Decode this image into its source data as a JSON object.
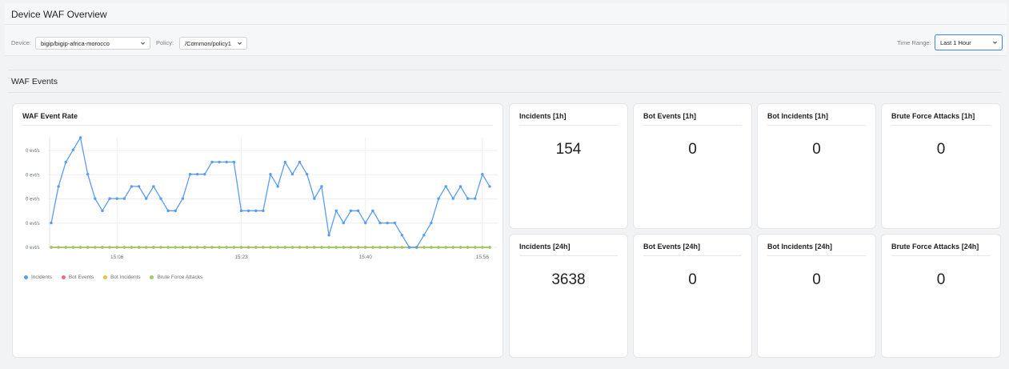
{
  "header": {
    "title": "Device WAF Overview"
  },
  "toolbar": {
    "device_label": "Device:",
    "device_value": "bigip/bigip-africa-morocco",
    "policy_label": "Policy:",
    "policy_value": "/Common/policy1",
    "time_range_label": "Time Range:",
    "time_range_value": "Last 1 Hour"
  },
  "section": {
    "title": "WAF Events"
  },
  "chart_card": {
    "title": "WAF Event Rate"
  },
  "stats": [
    {
      "title": "Incidents [1h]",
      "value": "154"
    },
    {
      "title": "Bot Events [1h]",
      "value": "0"
    },
    {
      "title": "Bot Incidents [1h]",
      "value": "0"
    },
    {
      "title": "Brute Force Attacks [1h]",
      "value": "0"
    },
    {
      "title": "Incidents [24h]",
      "value": "3638"
    },
    {
      "title": "Bot Events [24h]",
      "value": "0"
    },
    {
      "title": "Bot Incidents [24h]",
      "value": "0"
    },
    {
      "title": "Brute Force Attacks [24h]",
      "value": "0"
    }
  ],
  "colors": {
    "incidents": "#5b9cf3",
    "bot_events": "#e8707a",
    "bot_incidents": "#e6c53a",
    "brute_force": "#9cc96b",
    "focus": "#3b82f6"
  },
  "chart_data": {
    "type": "line",
    "title": "WAF Event Rate",
    "y_tick_labels": [
      "0 evt/s",
      "0 evt/s",
      "0 evt/s",
      "0 evt/s",
      "0 evt/s"
    ],
    "x_tick_labels": [
      "15:06",
      "15:23",
      "15:40",
      "15:56"
    ],
    "x_tick_indices": [
      9,
      26,
      43,
      59
    ],
    "ylim": [
      0,
      9
    ],
    "grid": true,
    "legend_position": "bottom-left",
    "series": [
      {
        "name": "Incidents",
        "color": "#5b9cf3",
        "values": [
          2,
          5,
          7,
          8,
          9,
          6,
          4,
          3,
          4,
          4,
          4,
          5,
          5,
          4,
          5,
          4,
          3,
          3,
          4,
          6,
          6,
          6,
          7,
          7,
          7,
          7,
          3,
          3,
          3,
          3,
          6,
          5,
          7,
          6,
          7,
          6,
          4,
          5,
          1,
          3,
          2,
          3,
          3,
          2,
          3,
          2,
          2,
          2,
          1,
          0,
          0,
          1,
          2,
          4,
          5,
          4,
          5,
          4,
          4,
          6,
          5
        ]
      },
      {
        "name": "Bot Events",
        "color": "#e8707a",
        "values": [
          0,
          0,
          0,
          0,
          0,
          0,
          0,
          0,
          0,
          0,
          0,
          0,
          0,
          0,
          0,
          0,
          0,
          0,
          0,
          0,
          0,
          0,
          0,
          0,
          0,
          0,
          0,
          0,
          0,
          0,
          0,
          0,
          0,
          0,
          0,
          0,
          0,
          0,
          0,
          0,
          0,
          0,
          0,
          0,
          0,
          0,
          0,
          0,
          0,
          0,
          0,
          0,
          0,
          0,
          0,
          0,
          0,
          0,
          0,
          0,
          0
        ]
      },
      {
        "name": "Bot Incidents",
        "color": "#e6c53a",
        "values": [
          0,
          0,
          0,
          0,
          0,
          0,
          0,
          0,
          0,
          0,
          0,
          0,
          0,
          0,
          0,
          0,
          0,
          0,
          0,
          0,
          0,
          0,
          0,
          0,
          0,
          0,
          0,
          0,
          0,
          0,
          0,
          0,
          0,
          0,
          0,
          0,
          0,
          0,
          0,
          0,
          0,
          0,
          0,
          0,
          0,
          0,
          0,
          0,
          0,
          0,
          0,
          0,
          0,
          0,
          0,
          0,
          0,
          0,
          0,
          0,
          0
        ]
      },
      {
        "name": "Brute Force Attacks",
        "color": "#9cc96b",
        "values": [
          0,
          0,
          0,
          0,
          0,
          0,
          0,
          0,
          0,
          0,
          0,
          0,
          0,
          0,
          0,
          0,
          0,
          0,
          0,
          0,
          0,
          0,
          0,
          0,
          0,
          0,
          0,
          0,
          0,
          0,
          0,
          0,
          0,
          0,
          0,
          0,
          0,
          0,
          0,
          0,
          0,
          0,
          0,
          0,
          0,
          0,
          0,
          0,
          0,
          0,
          0,
          0,
          0,
          0,
          0,
          0,
          0,
          0,
          0,
          0,
          0
        ]
      }
    ]
  }
}
